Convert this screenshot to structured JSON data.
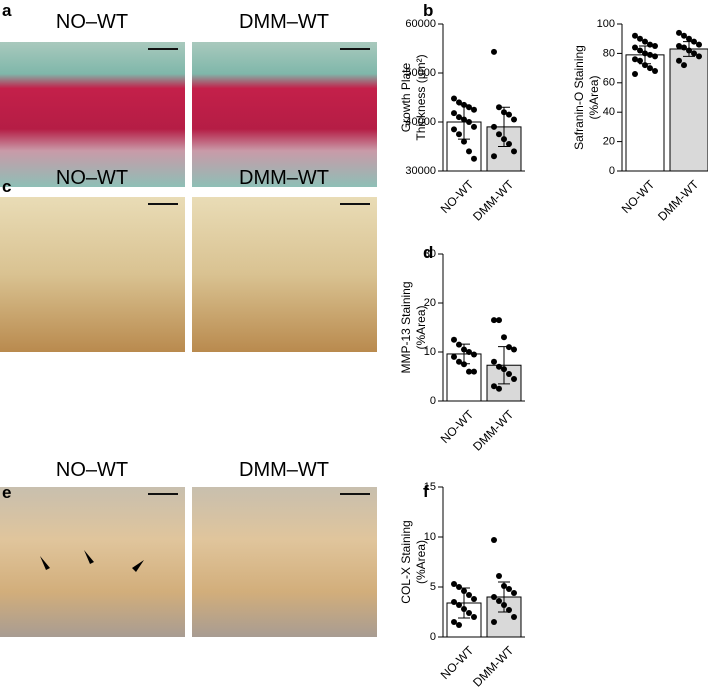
{
  "panels": [
    "a",
    "b",
    "c",
    "d",
    "e",
    "f"
  ],
  "images": [
    {
      "left": "NO–WT",
      "right": "DMM–WT"
    },
    {
      "left": "NO–WT",
      "right": "DMM–WT"
    },
    {
      "left": "NO–WT",
      "right": "DMM–WT"
    }
  ],
  "chart_data": [
    {
      "type": "bar",
      "y_label": [
        "Growth Plate",
        "Thickness (µm²)"
      ],
      "categories": [
        "NO-WT",
        "DMM-WT"
      ],
      "colors": [
        "#ffffff",
        "#d9d9d9"
      ],
      "values": [
        40000,
        39000
      ],
      "errors": [
        3500,
        4000
      ],
      "points": [
        [
          44800,
          44000,
          43500,
          43000,
          42500,
          41800,
          41000,
          40500,
          40000,
          39000,
          38500,
          37500,
          36000,
          34000,
          32500
        ],
        [
          54300,
          43000,
          42000,
          41500,
          40500,
          39000,
          37500,
          36500,
          35500,
          34000,
          33000
        ]
      ],
      "ylim": [
        30000,
        60000
      ],
      "yticks": [
        30000,
        40000,
        50000,
        60000
      ]
    },
    {
      "type": "bar",
      "y_label": [
        "Safranin-O Staining",
        "(%Area)"
      ],
      "categories": [
        "NO-WT",
        "DMM-WT"
      ],
      "colors": [
        "#ffffff",
        "#d9d9d9"
      ],
      "values": [
        79,
        83
      ],
      "errors": [
        6,
        5
      ],
      "points": [
        [
          92,
          90,
          88,
          86,
          85,
          84,
          82,
          80,
          79,
          78,
          76,
          75,
          72,
          70,
          68,
          66
        ],
        [
          94,
          92,
          90,
          88,
          86,
          85,
          84,
          82,
          80,
          78,
          75,
          72
        ]
      ],
      "ylim": [
        0,
        100
      ],
      "yticks": [
        0,
        20,
        40,
        60,
        80,
        100
      ]
    },
    {
      "type": "bar",
      "y_label": [
        "MMP-13 Staining",
        "(%Area)"
      ],
      "categories": [
        "NO-WT",
        "DMM-WT"
      ],
      "colors": [
        "#ffffff",
        "#d9d9d9"
      ],
      "values": [
        9.6,
        7.3
      ],
      "errors": [
        2.0,
        3.8
      ],
      "points": [
        [
          12.5,
          11.5,
          10.5,
          10,
          9.5,
          9,
          8,
          7.5,
          6,
          6
        ],
        [
          16.5,
          16.5,
          13,
          11,
          10.5,
          8,
          7,
          6.5,
          5.5,
          4.5,
          3,
          2.5
        ]
      ],
      "ylim": [
        0,
        30
      ],
      "yticks": [
        0,
        10,
        20,
        30
      ]
    },
    {
      "type": "bar",
      "y_label": [
        "COL-X Staining",
        "(%Area)"
      ],
      "categories": [
        "NO-WT",
        "DMM-WT"
      ],
      "colors": [
        "#ffffff",
        "#d9d9d9"
      ],
      "values": [
        3.4,
        4.0
      ],
      "errors": [
        1.5,
        1.5
      ],
      "points": [
        [
          5.3,
          5.0,
          4.6,
          4.2,
          3.8,
          3.5,
          3.2,
          2.8,
          2.4,
          2.0,
          1.5,
          1.2
        ],
        [
          9.7,
          6.1,
          5.1,
          4.8,
          4.4,
          4.0,
          3.6,
          3.2,
          2.7,
          2.0,
          1.5
        ]
      ],
      "ylim": [
        0,
        15
      ],
      "yticks": [
        0,
        5,
        10,
        15
      ]
    }
  ]
}
